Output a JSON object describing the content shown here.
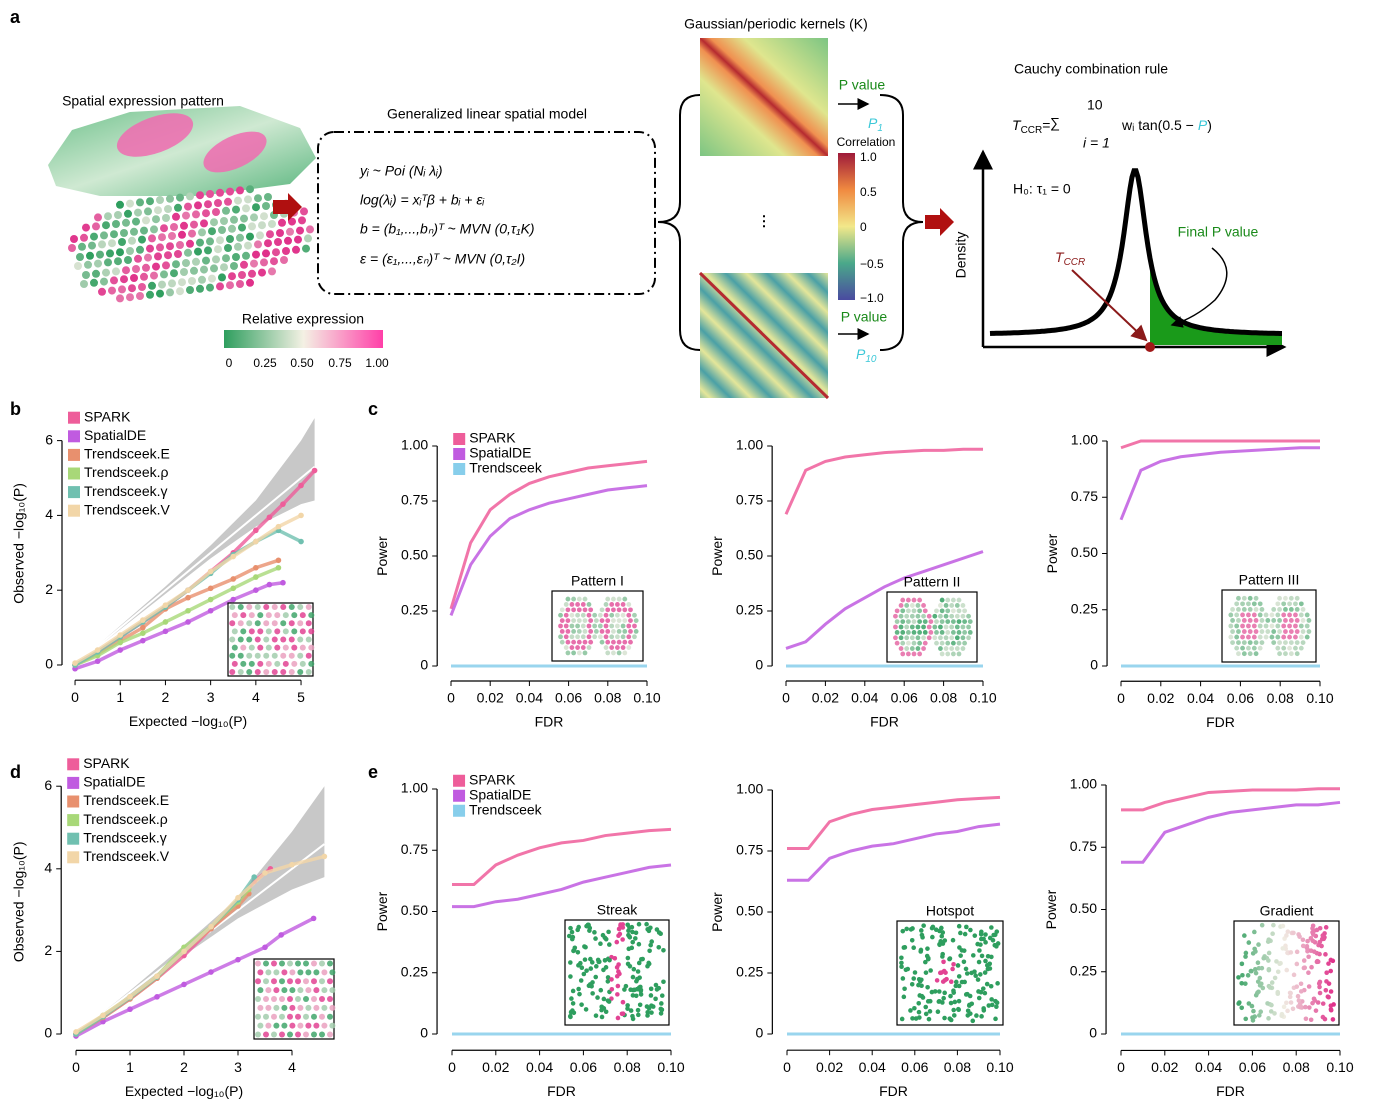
{
  "panel_a": {
    "label": "a",
    "expression_title": "Spatial expression pattern",
    "model_title": "Generalized linear spatial model",
    "equations": [
      "yᵢ ~ Poi (Nᵢ λᵢ)",
      "log(λᵢ) = xᵢᵀβ + bᵢ + εᵢ",
      "b = (b₁,...,bₙ)ᵀ ~ MVN (0,τ₁K)",
      "ε = (ε₁,...,εₙ)ᵀ ~ MVN (0,τ₂I)"
    ],
    "colorbar_title": "Relative expression",
    "colorbar_ticks": [
      "0",
      "0.25",
      "0.50",
      "0.75",
      "1.00"
    ],
    "kernels_title": "Gaussian/periodic kernels (K)",
    "correlation_title": "Correlation",
    "correlation_ticks": [
      "1.0",
      "0.5",
      "0",
      "−0.5",
      "−1.0"
    ],
    "p_values": [
      {
        "label": "P value",
        "symbol": "P",
        "sub": "1"
      },
      {
        "label": "P value",
        "symbol": "P",
        "sub": "10"
      }
    ],
    "ellipsis": "⋮",
    "cauchy_title": "Cauchy combination rule",
    "formula": {
      "lhs": "T",
      "lhs_sub": "CCR",
      "equals": "=",
      "sum": "∑",
      "upper": "10",
      "lower": "i = 1",
      "term": "wᵢ tan(0.5 −",
      "p": "P",
      "close": ")"
    },
    "null_hypothesis": "H₀: τ₁ = 0",
    "density_label": "Density",
    "statistic": {
      "symbol": "T",
      "sub": "CCR"
    },
    "final_p": "Final P value"
  },
  "chart_data": [
    {
      "type": "scatter",
      "panel": "b",
      "xlabel": "Expected −log₁₀(P)",
      "ylabel": "Observed −log₁₀(P)",
      "xlim": [
        -0.2,
        5.3
      ],
      "ylim": [
        -0.3,
        6.8
      ],
      "xticks": [
        0,
        1,
        2,
        3,
        4,
        5
      ],
      "yticks": [
        0,
        2,
        4,
        6
      ],
      "legend": "upper left",
      "reference_line": true,
      "band": {
        "color": "#c8c8c8",
        "x": [
          0,
          1,
          2,
          3,
          4,
          5,
          5.3
        ],
        "lower": [
          0,
          0.95,
          1.9,
          2.85,
          3.7,
          4.3,
          4.4
        ],
        "upper": [
          0,
          1.05,
          2.1,
          3.2,
          4.4,
          6.0,
          6.6
        ]
      },
      "series": [
        {
          "name": "SPARK",
          "color": "#ee5d9a",
          "x": [
            0,
            0.5,
            1,
            1.5,
            2,
            2.5,
            3,
            3.5,
            4,
            4.3,
            4.6,
            5,
            5.3
          ],
          "y": [
            0,
            0.35,
            0.75,
            1.15,
            1.55,
            2.0,
            2.5,
            3.0,
            3.6,
            3.95,
            4.3,
            4.8,
            5.2
          ]
        },
        {
          "name": "SpatialDE",
          "color": "#c05be0",
          "x": [
            0,
            0.5,
            1,
            1.5,
            2,
            2.5,
            3,
            3.5,
            4,
            4.3,
            4.6
          ],
          "y": [
            -0.1,
            0.1,
            0.4,
            0.65,
            0.9,
            1.15,
            1.45,
            1.75,
            2.0,
            2.15,
            2.2
          ]
        },
        {
          "name": "Trendsceek.E",
          "color": "#e8906e",
          "x": [
            0,
            0.5,
            1,
            1.5,
            2,
            2.5,
            3,
            3.5,
            4,
            4.5
          ],
          "y": [
            0,
            0.3,
            0.65,
            1.0,
            1.5,
            1.8,
            2.05,
            2.3,
            2.6,
            2.8
          ]
        },
        {
          "name": "Trendsceek.ρ",
          "color": "#a8d878",
          "x": [
            0,
            0.5,
            1,
            1.5,
            2,
            2.5,
            3,
            3.5,
            4,
            4.5
          ],
          "y": [
            0,
            0.25,
            0.6,
            0.85,
            1.15,
            1.45,
            1.75,
            2.05,
            2.35,
            2.6
          ]
        },
        {
          "name": "Trendsceek.γ",
          "color": "#70c0b0",
          "x": [
            0,
            0.5,
            1,
            1.5,
            2,
            2.5,
            3,
            3.5,
            4,
            4.5,
            5
          ],
          "y": [
            0,
            0.35,
            0.75,
            1.15,
            1.55,
            2.0,
            2.45,
            2.95,
            3.3,
            3.6,
            3.3
          ]
        },
        {
          "name": "Trendsceek.V",
          "color": "#f2d6a8",
          "x": [
            0,
            0.5,
            1,
            1.5,
            2,
            2.5,
            3,
            3.5,
            4,
            4.5,
            5
          ],
          "y": [
            0.05,
            0.4,
            0.8,
            1.2,
            1.6,
            2.0,
            2.5,
            2.9,
            3.3,
            3.7,
            4.0
          ]
        }
      ]
    },
    {
      "type": "line",
      "panel": "c",
      "xlabel": "FDR",
      "ylabel": "Power",
      "inset_title": "Pattern I",
      "legend": "upper left",
      "xlim": [
        -0.005,
        0.105
      ],
      "ylim": [
        -0.05,
        1.05
      ],
      "xticks": [
        0,
        0.02,
        0.04,
        0.06,
        0.08,
        {
          "value": 0.1,
          "label": "0.10"
        }
      ],
      "yticks": [
        0,
        0.25,
        {
          "value": 0.5,
          "label": "0.50"
        },
        0.75,
        {
          "value": 1,
          "label": "1.00"
        }
      ],
      "x": [
        0,
        0.01,
        0.02,
        0.03,
        0.04,
        0.05,
        0.06,
        0.07,
        0.08,
        0.09,
        0.1
      ],
      "series": [
        {
          "name": "SPARK",
          "color": "#ee5d9a",
          "values": [
            0.26,
            0.56,
            0.71,
            0.78,
            0.83,
            0.86,
            0.88,
            0.9,
            0.91,
            0.92,
            0.93
          ]
        },
        {
          "name": "SpatialDE",
          "color": "#c05be0",
          "values": [
            0.23,
            0.46,
            0.59,
            0.67,
            0.71,
            0.74,
            0.76,
            0.78,
            0.8,
            0.81,
            0.82
          ]
        },
        {
          "name": "Trendsceek",
          "color": "#87ceeb",
          "values": [
            0,
            0,
            0,
            0,
            0,
            0,
            0,
            0,
            0,
            0,
            0
          ]
        }
      ]
    },
    {
      "type": "line",
      "xlabel": "FDR",
      "ylabel": "Power",
      "inset_title": "Pattern II",
      "xlim": [
        -0.005,
        0.105
      ],
      "ylim": [
        -0.05,
        1.05
      ],
      "xticks": [
        0,
        0.02,
        0.04,
        0.06,
        0.08,
        {
          "value": 0.1,
          "label": "0.10"
        }
      ],
      "yticks": [
        0,
        0.25,
        {
          "value": 0.5,
          "label": "0.50"
        },
        0.75,
        {
          "value": 1,
          "label": "1.00"
        }
      ],
      "x": [
        0,
        0.01,
        0.02,
        0.03,
        0.04,
        0.05,
        0.06,
        0.07,
        0.08,
        0.09,
        0.1
      ],
      "series": [
        {
          "color": "#ee5d9a",
          "values": [
            0.69,
            0.89,
            0.93,
            0.95,
            0.96,
            0.97,
            0.975,
            0.98,
            0.98,
            0.985,
            0.985
          ]
        },
        {
          "color": "#c05be0",
          "values": [
            0.08,
            0.11,
            0.19,
            0.26,
            0.31,
            0.36,
            0.4,
            0.43,
            0.46,
            0.49,
            0.52
          ]
        },
        {
          "color": "#87ceeb",
          "values": [
            0,
            0,
            0,
            0,
            0,
            0,
            0,
            0,
            0,
            0,
            0
          ]
        }
      ]
    },
    {
      "type": "line",
      "xlabel": "FDR",
      "ylabel": "Power",
      "inset_title": "Pattern III",
      "xlim": [
        -0.005,
        0.105
      ],
      "ylim": [
        -0.05,
        1.05
      ],
      "xticks": [
        0,
        0.02,
        0.04,
        0.06,
        0.08,
        {
          "value": 0.1,
          "label": "0.10"
        }
      ],
      "yticks": [
        0,
        0.25,
        {
          "value": 0.5,
          "label": "0.50"
        },
        0.75,
        {
          "value": 1,
          "label": "1.00"
        }
      ],
      "x": [
        0,
        0.01,
        0.02,
        0.03,
        0.04,
        0.05,
        0.06,
        0.07,
        0.08,
        0.09,
        0.1
      ],
      "series": [
        {
          "color": "#ee5d9a",
          "values": [
            0.97,
            1,
            1,
            1,
            1,
            1,
            1,
            1,
            1,
            1,
            1
          ]
        },
        {
          "color": "#c05be0",
          "values": [
            0.65,
            0.87,
            0.91,
            0.93,
            0.94,
            0.95,
            0.955,
            0.96,
            0.965,
            0.97,
            0.97
          ]
        },
        {
          "color": "#87ceeb",
          "values": [
            0,
            0,
            0,
            0,
            0,
            0,
            0,
            0,
            0,
            0,
            0
          ]
        }
      ]
    },
    {
      "type": "scatter",
      "panel": "d",
      "xlabel": "Expected −log₁₀(P)",
      "ylabel": "Observed −log₁₀(P)",
      "xlim": [
        -0.2,
        4.6
      ],
      "ylim": [
        -0.3,
        6.7
      ],
      "xticks": [
        0,
        1,
        2,
        3,
        4
      ],
      "yticks": [
        0,
        2,
        4,
        6
      ],
      "legend": "upper left",
      "reference_line": true,
      "band": {
        "color": "#c8c8c8",
        "x": [
          0,
          1,
          2,
          3,
          4,
          4.6
        ],
        "lower": [
          0,
          0.95,
          1.9,
          2.8,
          3.5,
          3.8
        ],
        "upper": [
          0,
          1.05,
          2.15,
          3.3,
          4.9,
          6.0
        ]
      },
      "series": [
        {
          "name": "SPARK",
          "color": "#ee5d9a",
          "x": [
            0,
            0.5,
            1,
            1.5,
            2,
            2.5,
            3,
            3.3,
            3.6
          ],
          "y": [
            0,
            0.4,
            0.85,
            1.35,
            1.9,
            2.55,
            3.2,
            3.7,
            4.0
          ]
        },
        {
          "name": "SpatialDE",
          "color": "#c05be0",
          "x": [
            0,
            0.5,
            1,
            1.5,
            2,
            2.5,
            3,
            3.5,
            3.8,
            4.4
          ],
          "y": [
            -0.05,
            0.3,
            0.6,
            0.9,
            1.2,
            1.5,
            1.8,
            2.1,
            2.4,
            2.8
          ]
        },
        {
          "name": "Trendsceek.E",
          "color": "#e8906e",
          "x": [
            0,
            0.5,
            1,
            1.5,
            2,
            2.5,
            3,
            3.2
          ],
          "y": [
            0,
            0.4,
            0.85,
            1.35,
            2.0,
            2.55,
            3.1,
            3.4
          ]
        },
        {
          "name": "Trendsceek.ρ",
          "color": "#a8d878",
          "x": [
            0,
            0.5,
            1,
            1.5,
            2,
            2.5,
            3,
            3.2
          ],
          "y": [
            0,
            0.45,
            0.9,
            1.4,
            2.1,
            2.6,
            3.2,
            3.5
          ]
        },
        {
          "name": "Trendsceek.γ",
          "color": "#70c0b0",
          "x": [
            0,
            0.5,
            1,
            1.5,
            2,
            2.5,
            3,
            3.3
          ],
          "y": [
            0,
            0.42,
            0.88,
            1.38,
            2.0,
            2.6,
            3.25,
            3.8
          ]
        },
        {
          "name": "Trendsceek.V",
          "color": "#f2d6a8",
          "x": [
            0,
            0.5,
            1,
            1.5,
            2,
            2.5,
            3,
            3.5,
            4,
            4.6
          ],
          "y": [
            0.05,
            0.45,
            0.9,
            1.4,
            2.0,
            2.6,
            3.3,
            3.9,
            4.1,
            4.3
          ]
        }
      ]
    },
    {
      "type": "line",
      "panel": "e",
      "xlabel": "FDR",
      "ylabel": "Power",
      "inset_title": "Streak",
      "legend": "upper left",
      "xlim": [
        -0.005,
        0.105
      ],
      "ylim": [
        -0.05,
        1.05
      ],
      "xticks": [
        0,
        0.02,
        0.04,
        0.06,
        0.08,
        {
          "value": 0.1,
          "label": "0.10"
        }
      ],
      "yticks": [
        0,
        0.25,
        {
          "value": 0.5,
          "label": "0.50"
        },
        0.75,
        {
          "value": 1,
          "label": "1.00"
        }
      ],
      "x": [
        0,
        0.01,
        0.02,
        0.03,
        0.04,
        0.05,
        0.06,
        0.07,
        0.08,
        0.09,
        0.1
      ],
      "series": [
        {
          "name": "SPARK",
          "color": "#ee5d9a",
          "values": [
            0.61,
            0.61,
            0.69,
            0.73,
            0.76,
            0.78,
            0.79,
            0.81,
            0.82,
            0.83,
            0.835
          ]
        },
        {
          "name": "SpatialDE",
          "color": "#c05be0",
          "values": [
            0.52,
            0.52,
            0.54,
            0.55,
            0.57,
            0.59,
            0.62,
            0.64,
            0.66,
            0.68,
            0.69
          ]
        },
        {
          "name": "Trendsceek",
          "color": "#87ceeb",
          "values": [
            0,
            0,
            0,
            0,
            0,
            0,
            0,
            0,
            0,
            0,
            0
          ]
        }
      ]
    },
    {
      "type": "line",
      "xlabel": "FDR",
      "ylabel": "Power",
      "inset_title": "Hotspot",
      "xlim": [
        -0.005,
        0.105
      ],
      "ylim": [
        -0.05,
        1.05
      ],
      "xticks": [
        0,
        0.02,
        0.04,
        0.06,
        0.08,
        {
          "value": 0.1,
          "label": "0.10"
        }
      ],
      "yticks": [
        0,
        0.25,
        {
          "value": 0.5,
          "label": "0.50"
        },
        0.75,
        {
          "value": 1,
          "label": "1.00"
        }
      ],
      "x": [
        0,
        0.01,
        0.02,
        0.03,
        0.04,
        0.05,
        0.06,
        0.07,
        0.08,
        0.09,
        0.1
      ],
      "series": [
        {
          "color": "#ee5d9a",
          "values": [
            0.76,
            0.76,
            0.87,
            0.9,
            0.92,
            0.93,
            0.94,
            0.95,
            0.96,
            0.965,
            0.97
          ]
        },
        {
          "color": "#c05be0",
          "values": [
            0.63,
            0.63,
            0.72,
            0.75,
            0.77,
            0.78,
            0.8,
            0.82,
            0.83,
            0.85,
            0.86
          ]
        },
        {
          "color": "#87ceeb",
          "values": [
            0,
            0,
            0,
            0,
            0,
            0,
            0,
            0,
            0,
            0,
            0
          ]
        }
      ]
    },
    {
      "type": "line",
      "xlabel": "FDR",
      "ylabel": "Power",
      "inset_title": "Gradient",
      "xlim": [
        -0.005,
        0.105
      ],
      "ylim": [
        -0.05,
        1.05
      ],
      "xticks": [
        0,
        0.02,
        0.04,
        0.06,
        0.08,
        {
          "value": 0.1,
          "label": "0.10"
        }
      ],
      "yticks": [
        0,
        0.25,
        {
          "value": 0.5,
          "label": "0.50"
        },
        0.75,
        {
          "value": 1,
          "label": "1.00"
        }
      ],
      "x": [
        0,
        0.01,
        0.02,
        0.03,
        0.04,
        0.05,
        0.06,
        0.07,
        0.08,
        0.09,
        0.1
      ],
      "series": [
        {
          "color": "#ee5d9a",
          "values": [
            0.9,
            0.9,
            0.93,
            0.95,
            0.97,
            0.975,
            0.98,
            0.98,
            0.98,
            0.985,
            0.985
          ]
        },
        {
          "color": "#c05be0",
          "values": [
            0.69,
            0.69,
            0.81,
            0.84,
            0.87,
            0.89,
            0.9,
            0.91,
            0.92,
            0.92,
            0.93
          ]
        },
        {
          "color": "#87ceeb",
          "values": [
            0,
            0,
            0,
            0,
            0,
            0,
            0,
            0,
            0,
            0,
            0
          ]
        }
      ]
    }
  ]
}
